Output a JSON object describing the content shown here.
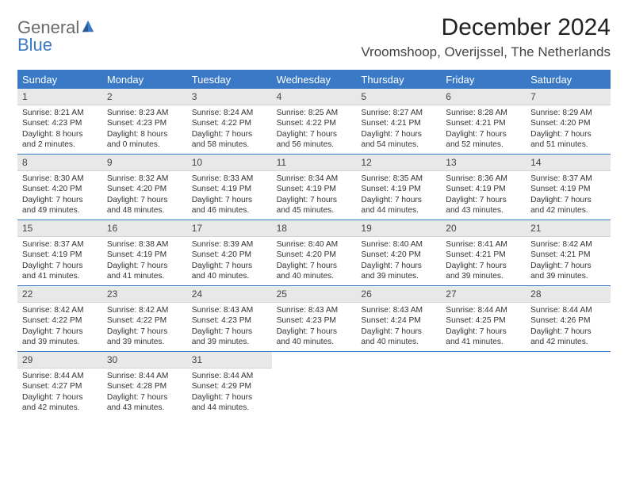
{
  "brand": {
    "word1": "General",
    "word2": "Blue",
    "logo_fill": "#3a79c6"
  },
  "title": "December 2024",
  "location": "Vroomshoop, Overijssel, The Netherlands",
  "colors": {
    "accent": "#3a79c6",
    "dow_text": "#ffffff",
    "daynum_bg": "#e8e8e8",
    "rule": "#3a79c6",
    "background": "#ffffff"
  },
  "daysOfWeek": [
    "Sunday",
    "Monday",
    "Tuesday",
    "Wednesday",
    "Thursday",
    "Friday",
    "Saturday"
  ],
  "weeks": [
    [
      {
        "n": "1",
        "sunrise": "Sunrise: 8:21 AM",
        "sunset": "Sunset: 4:23 PM",
        "daylight": "Daylight: 8 hours and 2 minutes."
      },
      {
        "n": "2",
        "sunrise": "Sunrise: 8:23 AM",
        "sunset": "Sunset: 4:23 PM",
        "daylight": "Daylight: 8 hours and 0 minutes."
      },
      {
        "n": "3",
        "sunrise": "Sunrise: 8:24 AM",
        "sunset": "Sunset: 4:22 PM",
        "daylight": "Daylight: 7 hours and 58 minutes."
      },
      {
        "n": "4",
        "sunrise": "Sunrise: 8:25 AM",
        "sunset": "Sunset: 4:22 PM",
        "daylight": "Daylight: 7 hours and 56 minutes."
      },
      {
        "n": "5",
        "sunrise": "Sunrise: 8:27 AM",
        "sunset": "Sunset: 4:21 PM",
        "daylight": "Daylight: 7 hours and 54 minutes."
      },
      {
        "n": "6",
        "sunrise": "Sunrise: 8:28 AM",
        "sunset": "Sunset: 4:21 PM",
        "daylight": "Daylight: 7 hours and 52 minutes."
      },
      {
        "n": "7",
        "sunrise": "Sunrise: 8:29 AM",
        "sunset": "Sunset: 4:20 PM",
        "daylight": "Daylight: 7 hours and 51 minutes."
      }
    ],
    [
      {
        "n": "8",
        "sunrise": "Sunrise: 8:30 AM",
        "sunset": "Sunset: 4:20 PM",
        "daylight": "Daylight: 7 hours and 49 minutes."
      },
      {
        "n": "9",
        "sunrise": "Sunrise: 8:32 AM",
        "sunset": "Sunset: 4:20 PM",
        "daylight": "Daylight: 7 hours and 48 minutes."
      },
      {
        "n": "10",
        "sunrise": "Sunrise: 8:33 AM",
        "sunset": "Sunset: 4:19 PM",
        "daylight": "Daylight: 7 hours and 46 minutes."
      },
      {
        "n": "11",
        "sunrise": "Sunrise: 8:34 AM",
        "sunset": "Sunset: 4:19 PM",
        "daylight": "Daylight: 7 hours and 45 minutes."
      },
      {
        "n": "12",
        "sunrise": "Sunrise: 8:35 AM",
        "sunset": "Sunset: 4:19 PM",
        "daylight": "Daylight: 7 hours and 44 minutes."
      },
      {
        "n": "13",
        "sunrise": "Sunrise: 8:36 AM",
        "sunset": "Sunset: 4:19 PM",
        "daylight": "Daylight: 7 hours and 43 minutes."
      },
      {
        "n": "14",
        "sunrise": "Sunrise: 8:37 AM",
        "sunset": "Sunset: 4:19 PM",
        "daylight": "Daylight: 7 hours and 42 minutes."
      }
    ],
    [
      {
        "n": "15",
        "sunrise": "Sunrise: 8:37 AM",
        "sunset": "Sunset: 4:19 PM",
        "daylight": "Daylight: 7 hours and 41 minutes."
      },
      {
        "n": "16",
        "sunrise": "Sunrise: 8:38 AM",
        "sunset": "Sunset: 4:19 PM",
        "daylight": "Daylight: 7 hours and 41 minutes."
      },
      {
        "n": "17",
        "sunrise": "Sunrise: 8:39 AM",
        "sunset": "Sunset: 4:20 PM",
        "daylight": "Daylight: 7 hours and 40 minutes."
      },
      {
        "n": "18",
        "sunrise": "Sunrise: 8:40 AM",
        "sunset": "Sunset: 4:20 PM",
        "daylight": "Daylight: 7 hours and 40 minutes."
      },
      {
        "n": "19",
        "sunrise": "Sunrise: 8:40 AM",
        "sunset": "Sunset: 4:20 PM",
        "daylight": "Daylight: 7 hours and 39 minutes."
      },
      {
        "n": "20",
        "sunrise": "Sunrise: 8:41 AM",
        "sunset": "Sunset: 4:21 PM",
        "daylight": "Daylight: 7 hours and 39 minutes."
      },
      {
        "n": "21",
        "sunrise": "Sunrise: 8:42 AM",
        "sunset": "Sunset: 4:21 PM",
        "daylight": "Daylight: 7 hours and 39 minutes."
      }
    ],
    [
      {
        "n": "22",
        "sunrise": "Sunrise: 8:42 AM",
        "sunset": "Sunset: 4:22 PM",
        "daylight": "Daylight: 7 hours and 39 minutes."
      },
      {
        "n": "23",
        "sunrise": "Sunrise: 8:42 AM",
        "sunset": "Sunset: 4:22 PM",
        "daylight": "Daylight: 7 hours and 39 minutes."
      },
      {
        "n": "24",
        "sunrise": "Sunrise: 8:43 AM",
        "sunset": "Sunset: 4:23 PM",
        "daylight": "Daylight: 7 hours and 39 minutes."
      },
      {
        "n": "25",
        "sunrise": "Sunrise: 8:43 AM",
        "sunset": "Sunset: 4:23 PM",
        "daylight": "Daylight: 7 hours and 40 minutes."
      },
      {
        "n": "26",
        "sunrise": "Sunrise: 8:43 AM",
        "sunset": "Sunset: 4:24 PM",
        "daylight": "Daylight: 7 hours and 40 minutes."
      },
      {
        "n": "27",
        "sunrise": "Sunrise: 8:44 AM",
        "sunset": "Sunset: 4:25 PM",
        "daylight": "Daylight: 7 hours and 41 minutes."
      },
      {
        "n": "28",
        "sunrise": "Sunrise: 8:44 AM",
        "sunset": "Sunset: 4:26 PM",
        "daylight": "Daylight: 7 hours and 42 minutes."
      }
    ],
    [
      {
        "n": "29",
        "sunrise": "Sunrise: 8:44 AM",
        "sunset": "Sunset: 4:27 PM",
        "daylight": "Daylight: 7 hours and 42 minutes."
      },
      {
        "n": "30",
        "sunrise": "Sunrise: 8:44 AM",
        "sunset": "Sunset: 4:28 PM",
        "daylight": "Daylight: 7 hours and 43 minutes."
      },
      {
        "n": "31",
        "sunrise": "Sunrise: 8:44 AM",
        "sunset": "Sunset: 4:29 PM",
        "daylight": "Daylight: 7 hours and 44 minutes."
      },
      null,
      null,
      null,
      null
    ]
  ]
}
